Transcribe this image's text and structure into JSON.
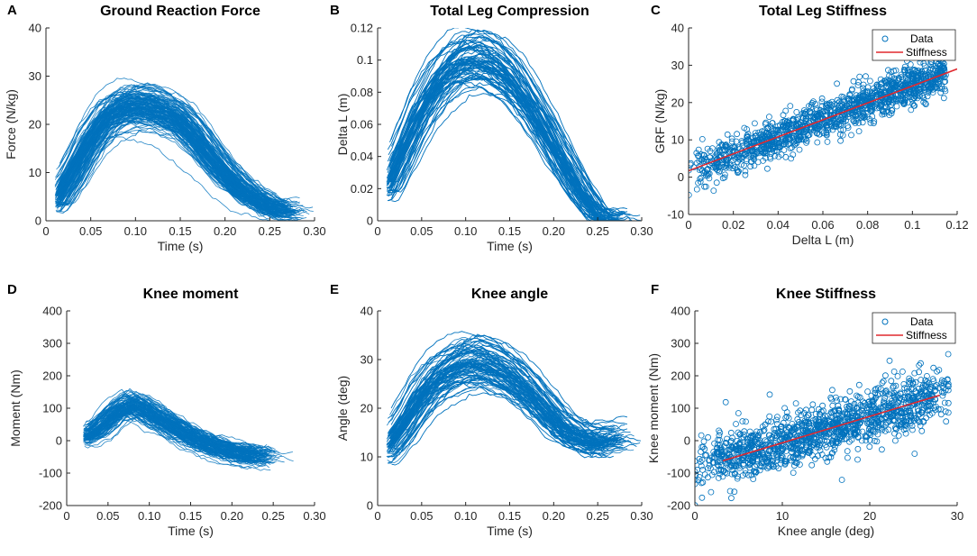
{
  "figure": {
    "colors": {
      "series": "#0072BD",
      "fit": "#E0282E",
      "axis": "#262626"
    }
  },
  "chart_data": [
    {
      "panel": "A",
      "type": "line",
      "title": "Ground Reaction Force",
      "xlabel": "Time (s)",
      "ylabel": "Force (N/kg)",
      "xlim": [
        0,
        0.3
      ],
      "ylim": [
        0,
        40
      ],
      "xticks": [
        0,
        0.05,
        0.1,
        0.15,
        0.2,
        0.25,
        0.3
      ],
      "xtick_labels": [
        "0",
        "0.05",
        "0.10",
        "0.15",
        "0.20",
        "0.25",
        "0.30"
      ],
      "yticks": [
        0,
        10,
        20,
        30,
        40
      ],
      "ytick_labels": [
        "0",
        "10",
        "20",
        "30",
        "40"
      ],
      "series_count": 150,
      "mean_curve": {
        "x": [
          0.01,
          0.03,
          0.05,
          0.07,
          0.09,
          0.11,
          0.13,
          0.15,
          0.17,
          0.19,
          0.21,
          0.23,
          0.25,
          0.27
        ],
        "y": [
          4,
          10,
          17,
          22,
          24,
          24,
          23,
          21,
          17,
          12,
          8,
          5,
          3,
          2
        ]
      }
    },
    {
      "panel": "B",
      "type": "line",
      "title": "Total Leg Compression",
      "xlabel": "Time (s)",
      "ylabel": "Delta L (m)",
      "xlim": [
        0,
        0.3
      ],
      "ylim": [
        0,
        0.12
      ],
      "xticks": [
        0,
        0.05,
        0.1,
        0.15,
        0.2,
        0.25,
        0.3
      ],
      "xtick_labels": [
        "0",
        "0.05",
        "0.10",
        "0.15",
        "0.20",
        "0.25",
        "0.30"
      ],
      "yticks": [
        0,
        0.02,
        0.04,
        0.06,
        0.08,
        0.1,
        0.12
      ],
      "ytick_labels": [
        "0",
        "0.02",
        "0.04",
        "0.06",
        "0.08",
        "0.1",
        "0.12"
      ],
      "series_count": 150,
      "mean_curve": {
        "x": [
          0.01,
          0.03,
          0.05,
          0.07,
          0.09,
          0.11,
          0.13,
          0.15,
          0.17,
          0.19,
          0.21,
          0.23,
          0.25,
          0.27
        ],
        "y": [
          0.02,
          0.045,
          0.07,
          0.088,
          0.099,
          0.102,
          0.099,
          0.09,
          0.075,
          0.057,
          0.037,
          0.018,
          0.003,
          0
        ]
      }
    },
    {
      "panel": "C",
      "type": "scatter",
      "title": "Total Leg Stiffness",
      "xlabel": "Delta L (m)",
      "ylabel": "GRF (N/kg)",
      "xlim": [
        0,
        0.12
      ],
      "ylim": [
        -10,
        40
      ],
      "xticks": [
        0,
        0.02,
        0.04,
        0.06,
        0.08,
        0.1,
        0.12
      ],
      "xtick_labels": [
        "0",
        "0.02",
        "0.04",
        "0.06",
        "0.08",
        "0.1",
        "0.12"
      ],
      "yticks": [
        -10,
        0,
        10,
        20,
        30,
        40
      ],
      "ytick_labels": [
        "-10",
        "0",
        "10",
        "20",
        "30",
        "40"
      ],
      "point_count": 1300,
      "fit": {
        "x": [
          0,
          0.12
        ],
        "y": [
          1.7,
          29
        ]
      },
      "legend": [
        "Data",
        "Stiffness"
      ],
      "legend_position": "top-right"
    },
    {
      "panel": "D",
      "type": "line",
      "title": "Knee moment",
      "xlabel": "Time (s)",
      "ylabel": "Moment (Nm)",
      "xlim": [
        0,
        0.3
      ],
      "ylim": [
        -200,
        400
      ],
      "xticks": [
        0,
        0.05,
        0.1,
        0.15,
        0.2,
        0.25,
        0.3
      ],
      "xtick_labels": [
        "0",
        "0.05",
        "0.10",
        "0.15",
        "0.20",
        "0.25",
        "0.30"
      ],
      "yticks": [
        -200,
        -100,
        0,
        100,
        200,
        300,
        400
      ],
      "ytick_labels": [
        "-200",
        "-100",
        "0",
        "100",
        "200",
        "300",
        "400"
      ],
      "series_count": 120,
      "mean_curve": {
        "x": [
          0.02,
          0.04,
          0.06,
          0.08,
          0.1,
          0.12,
          0.14,
          0.16,
          0.18,
          0.2,
          0.22,
          0.24
        ],
        "y": [
          10,
          40,
          90,
          115,
          85,
          55,
          25,
          0,
          -20,
          -35,
          -45,
          -50
        ]
      }
    },
    {
      "panel": "E",
      "type": "line",
      "title": "Knee angle",
      "xlabel": "Time (s)",
      "ylabel": "Angle (deg)",
      "xlim": [
        0,
        0.3
      ],
      "ylim": [
        0,
        40
      ],
      "xticks": [
        0,
        0.05,
        0.1,
        0.15,
        0.2,
        0.25,
        0.3
      ],
      "xtick_labels": [
        "0",
        "0.05",
        "0.10",
        "0.15",
        "0.20",
        "0.25",
        "0.30"
      ],
      "yticks": [
        0,
        10,
        20,
        30,
        40
      ],
      "ytick_labels": [
        "0",
        "10",
        "20",
        "30",
        "40"
      ],
      "series_count": 150,
      "mean_curve": {
        "x": [
          0.01,
          0.03,
          0.05,
          0.07,
          0.09,
          0.11,
          0.13,
          0.15,
          0.17,
          0.19,
          0.21,
          0.23,
          0.25,
          0.27
        ],
        "y": [
          12,
          17,
          23,
          27,
          29,
          30,
          29,
          27,
          24,
          20,
          16,
          14,
          13,
          14
        ]
      }
    },
    {
      "panel": "F",
      "type": "scatter",
      "title": "Knee Stiffness",
      "xlabel": "Knee angle (deg)",
      "ylabel": "Knee moment (Nm)",
      "xlim": [
        0,
        30
      ],
      "ylim": [
        -200,
        400
      ],
      "xticks": [
        0,
        10,
        20,
        30
      ],
      "xtick_labels": [
        "0",
        "10",
        "20",
        "30"
      ],
      "yticks": [
        -200,
        -100,
        0,
        100,
        200,
        300,
        400
      ],
      "ytick_labels": [
        "-200",
        "-100",
        "0",
        "100",
        "200",
        "300",
        "400"
      ],
      "point_count": 1300,
      "fit": {
        "x": [
          3.2,
          28
        ],
        "y": [
          -62,
          140
        ]
      },
      "legend": [
        "Data",
        "Stiffness"
      ],
      "legend_position": "top-right"
    }
  ]
}
